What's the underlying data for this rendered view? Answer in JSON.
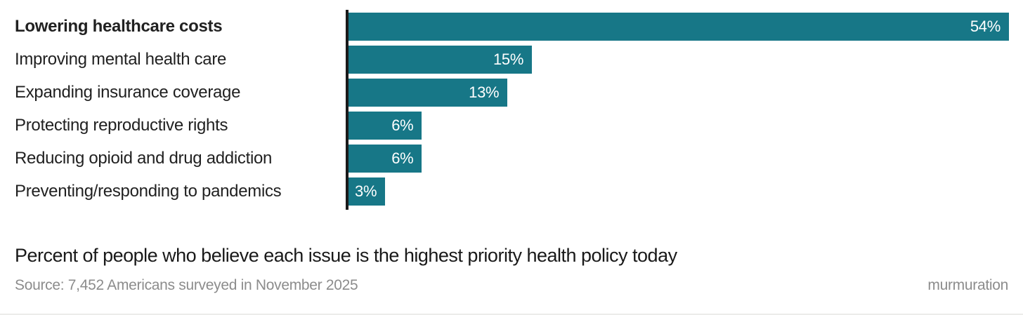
{
  "colors": {
    "bar": "#177787",
    "axis": "#1a1a1a",
    "label_text": "#212121",
    "caption_text": "#191919",
    "muted_text": "#8c8c8c",
    "value_text": "#ffffff",
    "background": "#ffffff",
    "divider": "#ececea"
  },
  "chart_data": {
    "type": "bar",
    "orientation": "horizontal",
    "title": "Percent of people who believe each issue is the highest priority health policy today",
    "categories": [
      "Lowering healthcare costs",
      "Improving mental health care",
      "Expanding insurance coverage",
      "Protecting reproductive rights",
      "Reducing opioid and drug addiction",
      "Preventing/responding to pandemics"
    ],
    "values": [
      54,
      15,
      13,
      6,
      6,
      3
    ],
    "value_labels": [
      "54%",
      "15%",
      "13%",
      "6%",
      "6%",
      "3%"
    ],
    "emphasized_category": "Lowering healthcare costs",
    "xmax": 54,
    "gridlines": false,
    "legend": false
  },
  "footer": {
    "source": "Source: 7,452 Americans surveyed in November 2025",
    "brand": "murmuration"
  }
}
